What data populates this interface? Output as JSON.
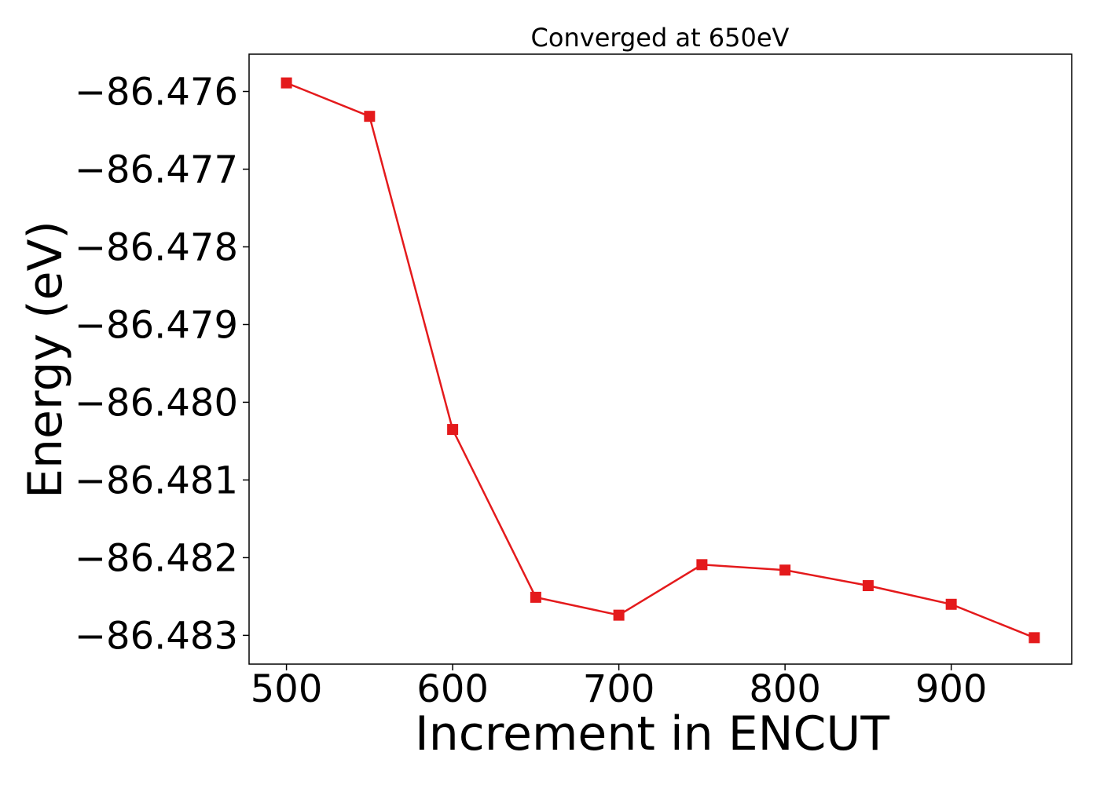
{
  "chart_data": {
    "type": "line",
    "title": "Converged at 650eV",
    "xlabel": "Increment in ENCUT",
    "ylabel": "Energy (eV)",
    "x": [
      500,
      550,
      600,
      650,
      700,
      750,
      800,
      850,
      900,
      950
    ],
    "series": [
      {
        "values": [
          -86.47589,
          -86.47632,
          -86.48035,
          -86.48251,
          -86.48274,
          -86.48209,
          -86.48216,
          -86.48236,
          -86.4826,
          -86.48303
        ]
      }
    ],
    "xticks": [
      500,
      600,
      700,
      800,
      900
    ],
    "xtick_labels": [
      "500",
      "600",
      "700",
      "800",
      "900"
    ],
    "yticks": [
      -86.476,
      -86.477,
      -86.478,
      -86.479,
      -86.48,
      -86.481,
      -86.482,
      -86.483
    ],
    "ytick_labels": [
      "−86.476",
      "−86.477",
      "−86.478",
      "−86.479",
      "−86.480",
      "−86.481",
      "−86.482",
      "−86.483"
    ],
    "xlim": [
      477.5,
      972.5
    ],
    "ylim": [
      -86.48337,
      -86.47552
    ],
    "grid": false,
    "line_color": "#e41a1c",
    "marker": "square"
  }
}
